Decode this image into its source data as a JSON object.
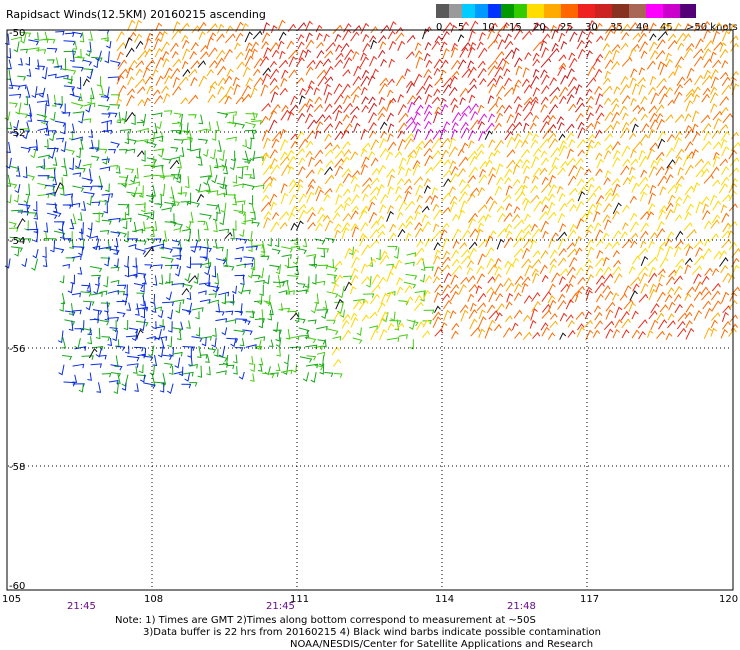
{
  "title": "Rapidsact Winds(12.5KM) 20160215 ascending",
  "legend": {
    "colors": [
      "#5a5a5a",
      "#9a9a9a",
      "#00ccff",
      "#0099ff",
      "#0033ff",
      "#009900",
      "#33cc00",
      "#ffdd00",
      "#ffaa00",
      "#ff6600",
      "#ee2222",
      "#cc2222",
      "#883322",
      "#aa6655",
      "#ff00ff",
      "#cc00cc",
      "#550077"
    ],
    "labels": [
      "0",
      "5",
      "10",
      "15",
      "20",
      "25",
      "30",
      "35",
      "40",
      "45",
      ">50 knots"
    ]
  },
  "map": {
    "lon_ticks": [
      "105",
      "108",
      "111",
      "114",
      "117",
      "120"
    ],
    "lat_ticks": [
      "-50",
      "-52",
      "-54",
      "-56",
      "-58",
      "-60"
    ],
    "times": [
      "21:45",
      "21:45",
      "21:48"
    ],
    "lon_range": [
      105,
      120
    ],
    "lat_range": [
      -60,
      -50
    ]
  },
  "notes": {
    "line1": "Note: 1) Times are GMT 2)Times along bottom correspond to measurement at ~50S",
    "line2": "3)Data buffer is 22 hrs from 20160215 4) Black wind barbs indicate possible contamination",
    "line3": "NOAA/NESDIS/Center for Satellite Applications and Research"
  }
}
